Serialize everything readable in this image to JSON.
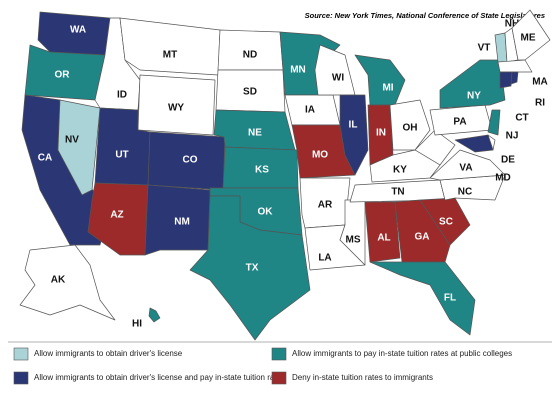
{
  "source": "Source: New York Times, National Conference of State Legislatures",
  "legend": [
    {
      "label": "Allow immigrants to obtain driver's license",
      "color": "#a9d3d6"
    },
    {
      "label": "Allow immigrants to pay in-state tuition rates at public colleges",
      "color": "#1f8585"
    },
    {
      "label": "Allow immigrants to obtain driver's license and pay in-state tuition rates",
      "color": "#2b3674"
    },
    {
      "label": "Deny in-state tuition rates to immigrants",
      "color": "#9c2a2a"
    }
  ],
  "states": [
    {
      "label": "WA",
      "color": "#2b3674"
    },
    {
      "label": "OR",
      "color": "#1f8585"
    },
    {
      "label": "CA",
      "color": "#2b3674"
    },
    {
      "label": "NV",
      "color": "#a9d3d6"
    },
    {
      "label": "ID",
      "color": "#ffffff"
    },
    {
      "label": "MT",
      "color": "#ffffff"
    },
    {
      "label": "WY",
      "color": "#ffffff"
    },
    {
      "label": "UT",
      "color": "#2b3674"
    },
    {
      "label": "AZ",
      "color": "#9c2a2a"
    },
    {
      "label": "CO",
      "color": "#2b3674"
    },
    {
      "label": "NM",
      "color": "#2b3674"
    },
    {
      "label": "ND",
      "color": "#ffffff"
    },
    {
      "label": "SD",
      "color": "#ffffff"
    },
    {
      "label": "NE",
      "color": "#1f8585"
    },
    {
      "label": "KS",
      "color": "#1f8585"
    },
    {
      "label": "OK",
      "color": "#1f8585"
    },
    {
      "label": "TX",
      "color": "#1f8585"
    },
    {
      "label": "MN",
      "color": "#1f8585"
    },
    {
      "label": "IA",
      "color": "#ffffff"
    },
    {
      "label": "MO",
      "color": "#9c2a2a"
    },
    {
      "label": "AR",
      "color": "#ffffff"
    },
    {
      "label": "LA",
      "color": "#ffffff"
    },
    {
      "label": "WI",
      "color": "#ffffff"
    },
    {
      "label": "IL",
      "color": "#2b3674"
    },
    {
      "label": "MS",
      "color": "#ffffff"
    },
    {
      "label": "MI",
      "color": "#1f8585"
    },
    {
      "label": "IN",
      "color": "#9c2a2a"
    },
    {
      "label": "OH",
      "color": "#ffffff"
    },
    {
      "label": "KY",
      "color": "#ffffff"
    },
    {
      "label": "TN",
      "color": "#ffffff"
    },
    {
      "label": "AL",
      "color": "#9c2a2a"
    },
    {
      "label": "GA",
      "color": "#9c2a2a"
    },
    {
      "label": "FL",
      "color": "#1f8585"
    },
    {
      "label": "SC",
      "color": "#9c2a2a"
    },
    {
      "label": "NC",
      "color": "#ffffff"
    },
    {
      "label": "VA",
      "color": "#ffffff"
    },
    {
      "label": "PA",
      "color": "#ffffff"
    },
    {
      "label": "NY",
      "color": "#1f8585"
    },
    {
      "label": "VT",
      "color": "#a9d3d6"
    },
    {
      "label": "NH",
      "color": "#ffffff"
    },
    {
      "label": "ME",
      "color": "#ffffff"
    },
    {
      "label": "MA",
      "color": "#ffffff"
    },
    {
      "label": "CT",
      "color": "#2b3674"
    },
    {
      "label": "RI",
      "color": "#2b3674"
    },
    {
      "label": "NJ",
      "color": "#1f8585"
    },
    {
      "label": "DE",
      "color": "#ffffff"
    },
    {
      "label": "MD",
      "color": "#2b3674"
    },
    {
      "label": "AK",
      "color": "#ffffff"
    },
    {
      "label": "HI",
      "color": "#1f8585"
    }
  ]
}
